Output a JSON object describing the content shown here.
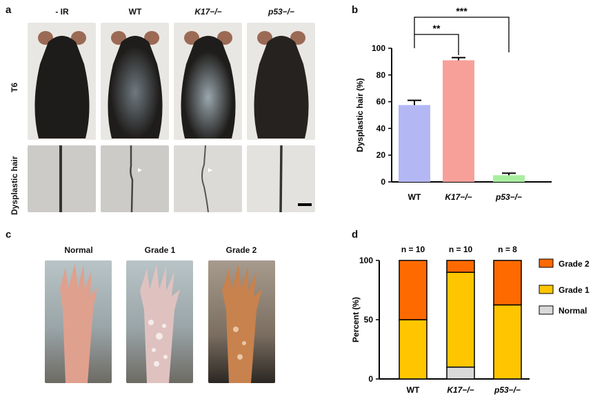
{
  "panel_a": {
    "label": "a",
    "columns": [
      "- IR",
      "WT",
      "K17−/−",
      "p53−/−"
    ],
    "rows": [
      "T6",
      "Dysplastic hair"
    ]
  },
  "panel_c": {
    "label": "c",
    "columns": [
      "Normal",
      "Grade 1",
      "Grade 2"
    ]
  },
  "colors": {
    "bar_wt": "#b3b8f5",
    "bar_k17": "#f7a099",
    "bar_p53": "#a7ef9f",
    "grade2": "#ff6a00",
    "grade1": "#ffc600",
    "normal": "#d9d9d9"
  },
  "chart_data": [
    {
      "panel": "b",
      "type": "bar",
      "categories": [
        "WT",
        "K17−/−",
        "p53−/−"
      ],
      "values": [
        57.5,
        91,
        5
      ],
      "errors": [
        3.5,
        2,
        1.5
      ],
      "ylabel": "Dysplastic hair (%)",
      "ylim": [
        0,
        100
      ],
      "yticks": [
        "0",
        "20",
        "40",
        "60",
        "80",
        "100"
      ],
      "significance": [
        {
          "from": "WT",
          "to": "K17−/−",
          "label": "**"
        },
        {
          "from": "WT",
          "to": "p53−/−",
          "label": "***"
        }
      ]
    },
    {
      "panel": "d",
      "type": "bar",
      "stacked": true,
      "categories": [
        "WT",
        "K17−/−",
        "p53−/−"
      ],
      "n_labels": [
        "n = 10",
        "n = 10",
        "n = 8"
      ],
      "series": [
        {
          "name": "Normal",
          "values": [
            0,
            10,
            0
          ]
        },
        {
          "name": "Grade 1",
          "values": [
            50,
            80,
            62.5
          ]
        },
        {
          "name": "Grade 2",
          "values": [
            50,
            10,
            37.5
          ]
        }
      ],
      "legend": [
        "Grade 2",
        "Grade 1",
        "Normal"
      ],
      "ylabel": "Percent (%)",
      "ylim": [
        0,
        100
      ],
      "yticks": [
        "0",
        "50",
        "100"
      ]
    }
  ]
}
